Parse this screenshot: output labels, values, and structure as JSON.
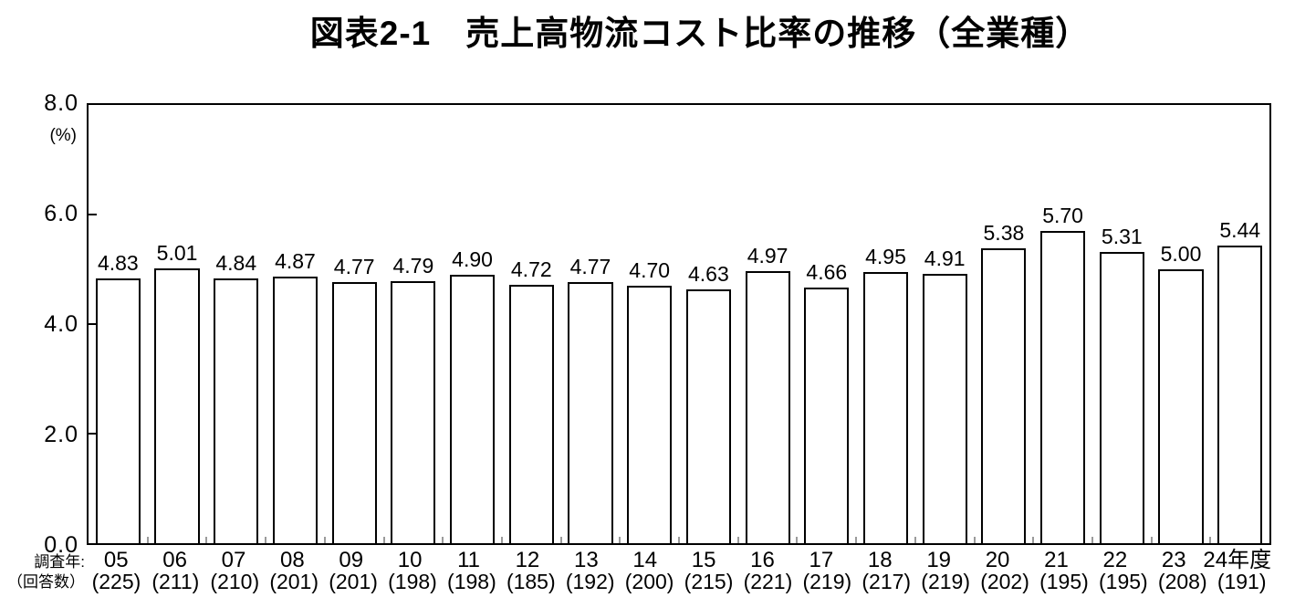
{
  "title": "図表2-1　売上高物流コスト比率の推移（全業種）",
  "chart_data": {
    "type": "bar",
    "title": "図表2-1　売上高物流コスト比率の推移（全業種）",
    "unit_label": "(%)",
    "xlabel": "",
    "ylabel": "(%)",
    "ylim": [
      0,
      8
    ],
    "yticks": [
      "8.0",
      "6.0",
      "4.0",
      "2.0",
      "0.0"
    ],
    "ytick_values": [
      8,
      6,
      4,
      2,
      0
    ],
    "grid": false,
    "legend": false,
    "x_prefix_year_label": "調査年:",
    "x_prefix_count_label": "（回答数）",
    "categories": [
      "05",
      "06",
      "07",
      "08",
      "09",
      "10",
      "11",
      "12",
      "13",
      "14",
      "15",
      "16",
      "17",
      "18",
      "19",
      "20",
      "21",
      "22",
      "23",
      "24年度"
    ],
    "responses": [
      "(225)",
      "(211)",
      "(210)",
      "(201)",
      "(201)",
      "(198)",
      "(198)",
      "(185)",
      "(192)",
      "(200)",
      "(215)",
      "(221)",
      "(219)",
      "(217)",
      "(219)",
      "(202)",
      "(195)",
      "(195)",
      "(208)",
      "(191)"
    ],
    "values": [
      4.83,
      5.01,
      4.84,
      4.87,
      4.77,
      4.79,
      4.9,
      4.72,
      4.77,
      4.7,
      4.63,
      4.97,
      4.66,
      4.95,
      4.91,
      5.38,
      5.7,
      5.31,
      5.0,
      5.44
    ],
    "value_labels": [
      "4.83",
      "5.01",
      "4.84",
      "4.87",
      "4.77",
      "4.79",
      "4.90",
      "4.72",
      "4.77",
      "4.70",
      "4.63",
      "4.97",
      "4.66",
      "4.95",
      "4.91",
      "5.38",
      "5.70",
      "5.31",
      "5.00",
      "5.44"
    ],
    "colors": {
      "bar_fill": "#ffffff",
      "bar_border": "#000000",
      "axis": "#000000",
      "boundary_tick": "#9a9a9a",
      "text": "#000000",
      "background": "#ffffff"
    }
  }
}
